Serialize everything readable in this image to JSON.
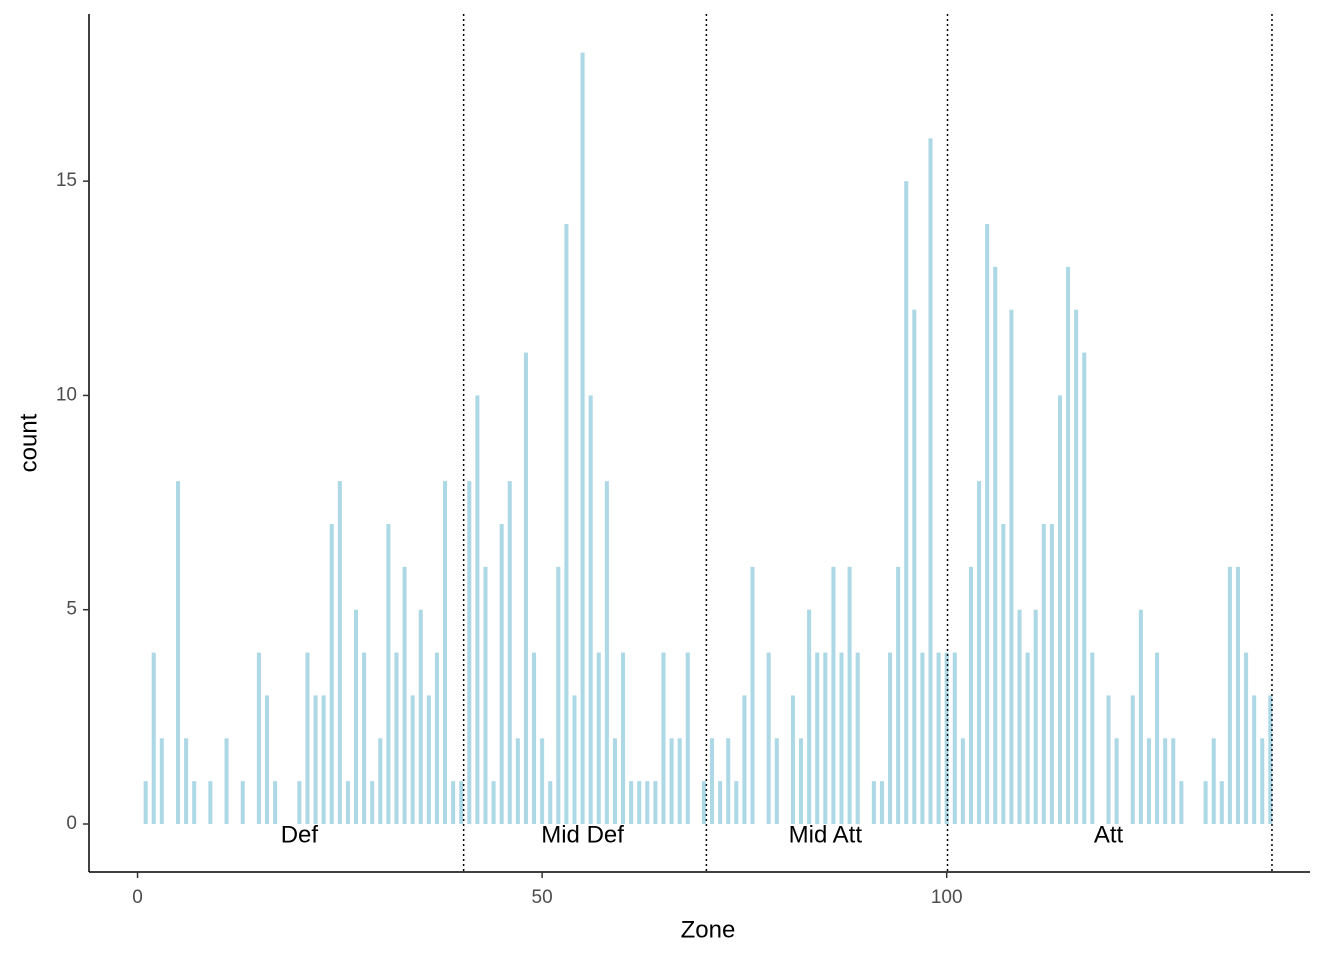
{
  "chart_data": {
    "type": "bar",
    "x_label": "Zone",
    "y_label": "count",
    "x": [
      1,
      2,
      3,
      5,
      6,
      7,
      9,
      11,
      13,
      15,
      16,
      17,
      20,
      21,
      22,
      23,
      24,
      25,
      26,
      27,
      28,
      29,
      30,
      31,
      32,
      33,
      34,
      35,
      36,
      37,
      38,
      39,
      40,
      41,
      42,
      43,
      44,
      45,
      46,
      47,
      48,
      49,
      50,
      51,
      52,
      53,
      54,
      55,
      56,
      57,
      58,
      59,
      60,
      61,
      62,
      63,
      64,
      65,
      66,
      67,
      68,
      70,
      71,
      72,
      73,
      74,
      75,
      76,
      78,
      79,
      81,
      82,
      83,
      84,
      85,
      86,
      87,
      88,
      89,
      91,
      92,
      93,
      94,
      95,
      96,
      97,
      98,
      99,
      100,
      101,
      102,
      103,
      104,
      105,
      106,
      107,
      108,
      109,
      110,
      111,
      112,
      113,
      114,
      115,
      116,
      117,
      118,
      120,
      121,
      123,
      124,
      125,
      126,
      127,
      128,
      129,
      132,
      133,
      134,
      135,
      136,
      137,
      138,
      139,
      140
    ],
    "values": [
      1,
      4,
      2,
      8,
      2,
      1,
      1,
      2,
      1,
      4,
      3,
      1,
      1,
      4,
      3,
      3,
      7,
      8,
      1,
      5,
      4,
      1,
      2,
      7,
      4,
      6,
      3,
      5,
      3,
      4,
      8,
      1,
      1,
      8,
      10,
      6,
      1,
      7,
      8,
      2,
      11,
      4,
      2,
      1,
      6,
      14,
      3,
      18,
      10,
      4,
      8,
      2,
      4,
      1,
      1,
      1,
      1,
      4,
      2,
      2,
      4,
      1,
      2,
      1,
      2,
      1,
      3,
      6,
      4,
      2,
      3,
      2,
      5,
      4,
      4,
      6,
      4,
      6,
      4,
      1,
      1,
      4,
      6,
      15,
      12,
      4,
      16,
      4,
      4,
      4,
      2,
      6,
      8,
      14,
      13,
      7,
      12,
      5,
      4,
      5,
      7,
      7,
      10,
      13,
      12,
      11,
      4,
      3,
      2,
      3,
      5,
      2,
      4,
      2,
      2,
      1,
      1,
      2,
      1,
      6,
      6,
      4,
      3,
      2,
      3
    ],
    "color": "#add8e6",
    "bar_width": 0.5,
    "xlim": [
      -6,
      144.9
    ],
    "ylim": [
      -1.12,
      18.9
    ],
    "xticks": [
      0,
      50,
      100
    ],
    "yticks": [
      0,
      5,
      10,
      15
    ],
    "vlines": [
      40.3,
      70.3,
      100.1,
      140.2
    ],
    "annotations": [
      {
        "text": "Def",
        "x": 20,
        "y": -0.28
      },
      {
        "text": "Mid Def",
        "x": 55,
        "y": -0.28
      },
      {
        "text": "Mid Att",
        "x": 85,
        "y": -0.28
      },
      {
        "text": "Att",
        "x": 120,
        "y": -0.28
      }
    ]
  }
}
